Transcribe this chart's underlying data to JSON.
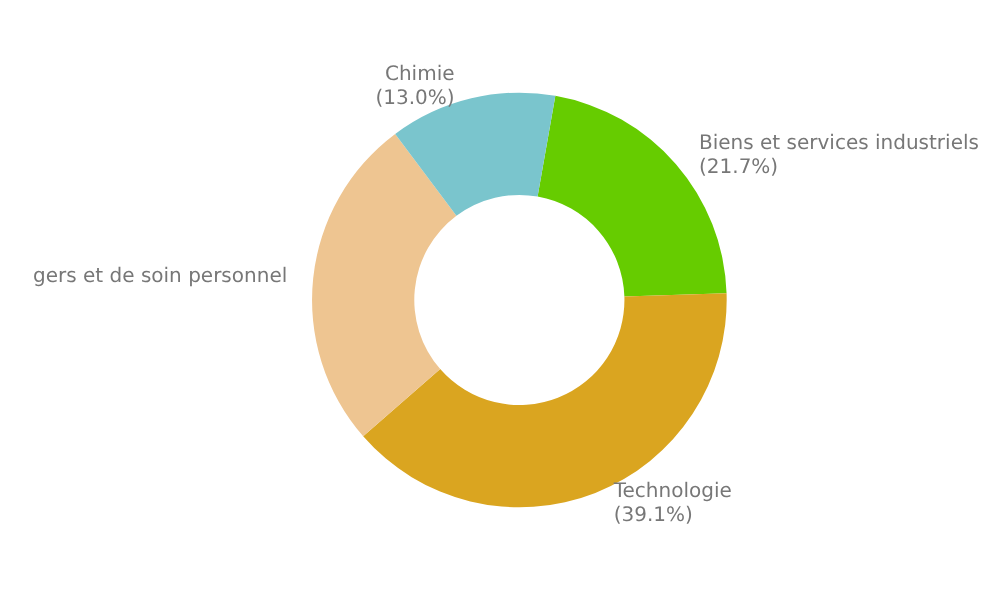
{
  "chart_data": {
    "type": "donut",
    "categories": [
      "Biens et services industriels",
      "Technologie",
      "gers et de soin personnel",
      "Chimie"
    ],
    "values": [
      21.7,
      39.1,
      26.2,
      13.0
    ],
    "value_labels": [
      "(21.7%)",
      "(39.1%)",
      null,
      "(13.0%)"
    ],
    "colors": [
      "#66cc00",
      "#daa520",
      "#eec591",
      "#7ac5cd"
    ],
    "legend": false
  }
}
